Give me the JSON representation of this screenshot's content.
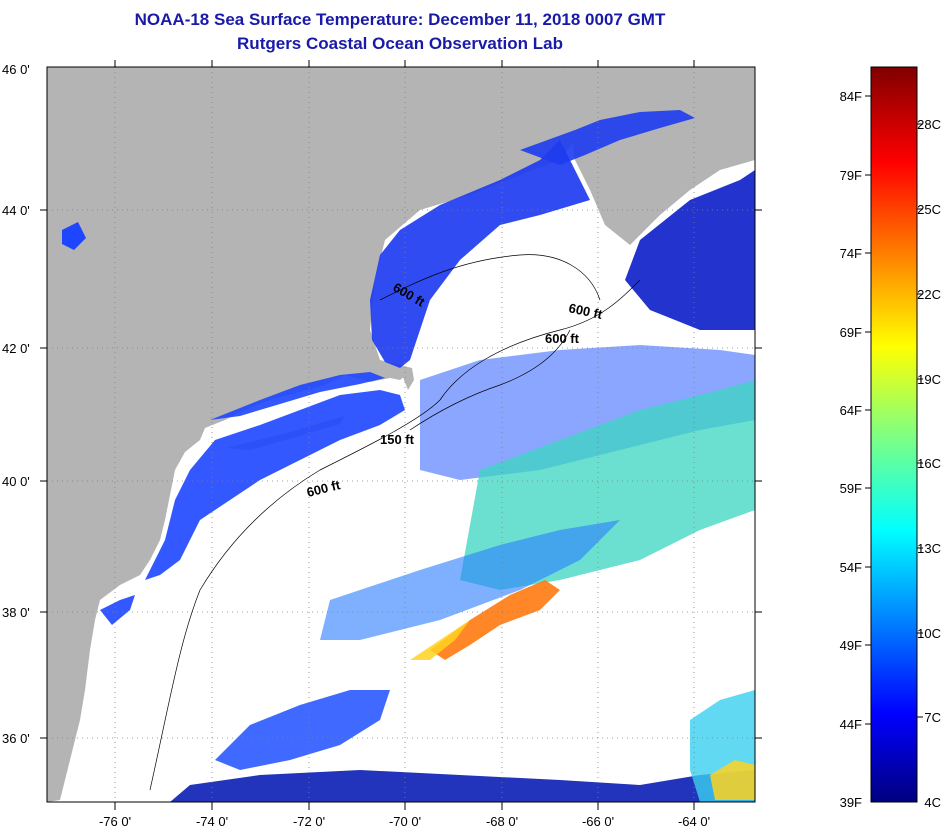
{
  "title": "NOAA-18 Sea Surface Temperature:  December 11, 2018 0007 GMT",
  "subtitle": "Rutgers Coastal Ocean Observation Lab",
  "lat_labels": [
    "46 0'",
    "44 0'",
    "42 0'",
    "40 0'",
    "38 0'",
    "36 0'"
  ],
  "lon_labels": [
    "-76 0'",
    "-74 0'",
    "-72 0'",
    "-70 0'",
    "-68 0'",
    "-66 0'",
    "-64 0'"
  ],
  "depth_labels": [
    "600 ft",
    "600 ft",
    "600 ft",
    "150 ft",
    "600 ft"
  ],
  "colorbar": {
    "fahrenheit": [
      "84F",
      "79F",
      "74F",
      "69F",
      "64F",
      "59F",
      "54F",
      "49F",
      "44F",
      "39F"
    ],
    "celsius": [
      "28C",
      "25C",
      "22C",
      "19C",
      "16C",
      "13C",
      "10C",
      "7C",
      "4C"
    ],
    "colors": [
      "#00007f",
      "#0000ff",
      "#0080ff",
      "#00ffff",
      "#80ff80",
      "#ffff00",
      "#ff8000",
      "#ff0000",
      "#800000"
    ]
  },
  "colors": {
    "land": "#b4b4b4",
    "title": "#1a1aa8",
    "cloud": "#ffffff"
  }
}
